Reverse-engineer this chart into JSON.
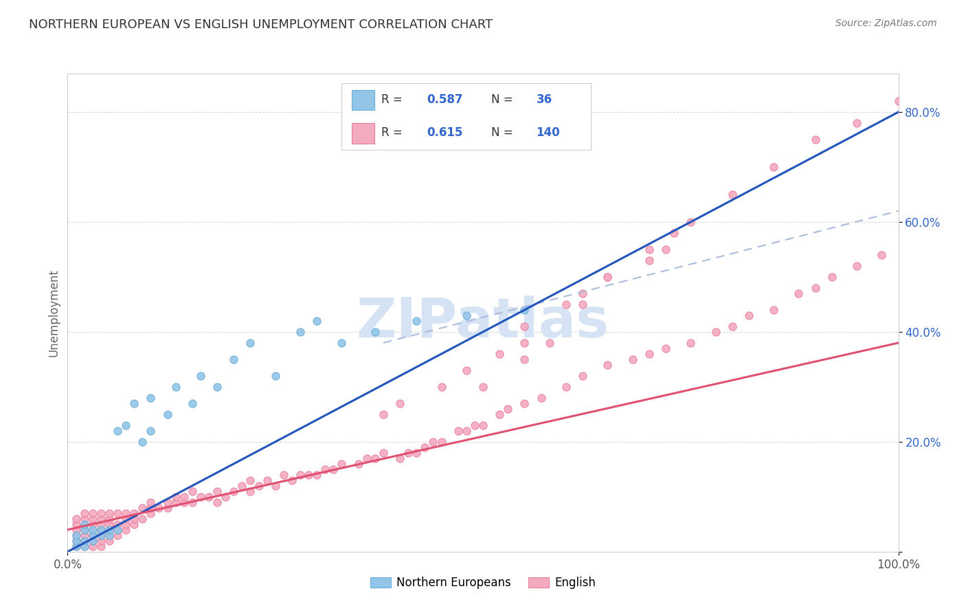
{
  "title": "NORTHERN EUROPEAN VS ENGLISH UNEMPLOYMENT CORRELATION CHART",
  "source": "Source: ZipAtlas.com",
  "ylabel": "Unemployment",
  "xlabel": "",
  "legend_label1": "Northern Europeans",
  "legend_label2": "English",
  "r1": 0.587,
  "n1": 36,
  "r2": 0.615,
  "n2": 140,
  "bg_color": "#ffffff",
  "scatter_color1": "#92C5E8",
  "scatter_color2": "#F4AABF",
  "scatter_edge1": "#6AAED6",
  "scatter_edge2": "#E87FA0",
  "line_color1": "#2255BB",
  "line_color2": "#E05070",
  "dash_line_color": "#AABBDD",
  "title_color": "#333333",
  "source_color": "#777777",
  "blue_text_color": "#3366CC",
  "watermark_color": "#C8D8F0",
  "grid_color": "#CCCCCC",
  "xlim": [
    0.0,
    1.0
  ],
  "ylim": [
    0.0,
    0.87
  ],
  "ne_x": [
    0.01,
    0.01,
    0.01,
    0.02,
    0.02,
    0.02,
    0.02,
    0.03,
    0.03,
    0.03,
    0.04,
    0.04,
    0.05,
    0.05,
    0.06,
    0.06,
    0.07,
    0.08,
    0.09,
    0.1,
    0.1,
    0.12,
    0.13,
    0.15,
    0.16,
    0.18,
    0.2,
    0.22,
    0.25,
    0.28,
    0.3,
    0.33,
    0.37,
    0.42,
    0.48,
    0.55
  ],
  "ne_y": [
    0.01,
    0.02,
    0.03,
    0.01,
    0.02,
    0.04,
    0.05,
    0.02,
    0.03,
    0.04,
    0.03,
    0.04,
    0.03,
    0.04,
    0.04,
    0.22,
    0.23,
    0.27,
    0.2,
    0.22,
    0.28,
    0.25,
    0.3,
    0.27,
    0.32,
    0.3,
    0.35,
    0.38,
    0.32,
    0.4,
    0.42,
    0.38,
    0.4,
    0.42,
    0.43,
    0.44
  ],
  "en_x": [
    0.01,
    0.01,
    0.01,
    0.01,
    0.01,
    0.01,
    0.02,
    0.02,
    0.02,
    0.02,
    0.02,
    0.02,
    0.02,
    0.03,
    0.03,
    0.03,
    0.03,
    0.03,
    0.03,
    0.03,
    0.04,
    0.04,
    0.04,
    0.04,
    0.04,
    0.04,
    0.04,
    0.05,
    0.05,
    0.05,
    0.05,
    0.05,
    0.05,
    0.06,
    0.06,
    0.06,
    0.06,
    0.07,
    0.07,
    0.07,
    0.07,
    0.08,
    0.08,
    0.08,
    0.09,
    0.09,
    0.1,
    0.1,
    0.1,
    0.11,
    0.12,
    0.12,
    0.13,
    0.13,
    0.14,
    0.14,
    0.15,
    0.15,
    0.16,
    0.17,
    0.18,
    0.18,
    0.19,
    0.2,
    0.21,
    0.22,
    0.22,
    0.23,
    0.24,
    0.25,
    0.26,
    0.27,
    0.28,
    0.29,
    0.3,
    0.31,
    0.32,
    0.33,
    0.35,
    0.36,
    0.37,
    0.38,
    0.4,
    0.41,
    0.42,
    0.43,
    0.44,
    0.45,
    0.47,
    0.48,
    0.49,
    0.5,
    0.52,
    0.53,
    0.55,
    0.57,
    0.6,
    0.62,
    0.65,
    0.68,
    0.7,
    0.72,
    0.75,
    0.78,
    0.8,
    0.82,
    0.85,
    0.88,
    0.9,
    0.92,
    0.95,
    0.98,
    0.55,
    0.6,
    0.62,
    0.65,
    0.7,
    0.72,
    0.5,
    0.55,
    0.58,
    0.62,
    0.65,
    0.7,
    0.73,
    0.75,
    0.8,
    0.85,
    0.9,
    0.95,
    1.0,
    0.38,
    0.4,
    0.45,
    0.48,
    0.52,
    0.55
  ],
  "en_y": [
    0.01,
    0.02,
    0.03,
    0.04,
    0.05,
    0.06,
    0.01,
    0.02,
    0.03,
    0.04,
    0.05,
    0.06,
    0.07,
    0.01,
    0.02,
    0.03,
    0.04,
    0.05,
    0.06,
    0.07,
    0.01,
    0.02,
    0.03,
    0.04,
    0.05,
    0.06,
    0.07,
    0.02,
    0.03,
    0.04,
    0.05,
    0.06,
    0.07,
    0.03,
    0.04,
    0.05,
    0.07,
    0.04,
    0.05,
    0.06,
    0.07,
    0.05,
    0.06,
    0.07,
    0.06,
    0.08,
    0.07,
    0.08,
    0.09,
    0.08,
    0.08,
    0.09,
    0.09,
    0.1,
    0.09,
    0.1,
    0.09,
    0.11,
    0.1,
    0.1,
    0.09,
    0.11,
    0.1,
    0.11,
    0.12,
    0.11,
    0.13,
    0.12,
    0.13,
    0.12,
    0.14,
    0.13,
    0.14,
    0.14,
    0.14,
    0.15,
    0.15,
    0.16,
    0.16,
    0.17,
    0.17,
    0.18,
    0.17,
    0.18,
    0.18,
    0.19,
    0.2,
    0.2,
    0.22,
    0.22,
    0.23,
    0.23,
    0.25,
    0.26,
    0.27,
    0.28,
    0.3,
    0.32,
    0.34,
    0.35,
    0.36,
    0.37,
    0.38,
    0.4,
    0.41,
    0.43,
    0.44,
    0.47,
    0.48,
    0.5,
    0.52,
    0.54,
    0.41,
    0.45,
    0.47,
    0.5,
    0.53,
    0.55,
    0.3,
    0.35,
    0.38,
    0.45,
    0.5,
    0.55,
    0.58,
    0.6,
    0.65,
    0.7,
    0.75,
    0.78,
    0.82,
    0.25,
    0.27,
    0.3,
    0.33,
    0.36,
    0.38
  ]
}
